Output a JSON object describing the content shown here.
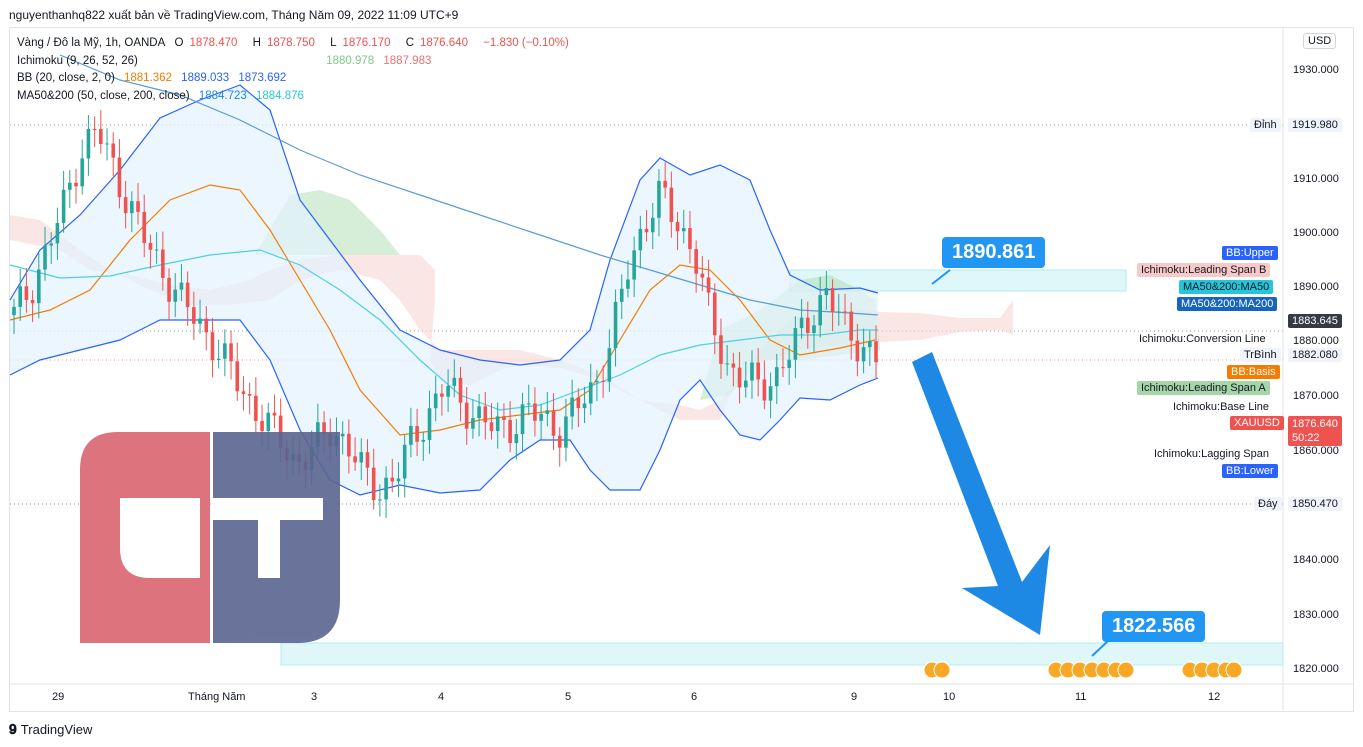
{
  "header": {
    "published": "nguyenthanhq822 xuất bản về TradingView.com, Tháng Năm 09, 2022 11:09 UTC+9"
  },
  "legend": {
    "symbol": "Vàng / Đô la Mỹ, 1h, OANDA",
    "o_label": "O",
    "o_value": "1878.470",
    "h_label": "H",
    "h_value": "1878.750",
    "l_label": "L",
    "l_value": "1876.170",
    "c_label": "C",
    "c_value": "1876.640",
    "change": "−1.830 (−0.10%)",
    "ichimoku_label": "Ichimoku (9, 26, 52, 26)",
    "ichimoku_a": "1880.978",
    "ichimoku_b": "1887.983",
    "bb_label": "BB (20, close, 2, 0)",
    "bb_basis": "1881.362",
    "bb_upper": "1889.033",
    "bb_lower": "1873.692",
    "ma_label": "MA50&200 (50, close, 200, close)",
    "ma50": "1884.723",
    "ma200": "1884.876"
  },
  "currency_button": "USD",
  "price_axis": [
    "1930.000",
    "1910.000",
    "1900.000",
    "1890.000",
    "1880.000",
    "1870.000",
    "1860.000",
    "1840.000",
    "1830.000",
    "1820.000"
  ],
  "price_labels": {
    "dinh_label": "Đỉnh",
    "dinh_value": "1919.980",
    "day_label": "Đáy",
    "day_value": "1850.470",
    "bb_upper": "BB:Upper",
    "leading_b": "Ichimoku:Leading Span B",
    "ma50": "MA50&200:MA50",
    "ma200": "MA50&200:MA200",
    "current_value": "1883.645",
    "conversion": "Ichimoku:Conversion Line",
    "trbinh_label": "TrBình",
    "trbinh_value": "1882.080",
    "bb_basis": "BB:Basis",
    "leading_a": "Ichimoku:Leading Span A",
    "base_line": "Ichimoku:Base Line",
    "xau_label": "XAUUSD",
    "xau_value": "1876.640",
    "xau_timer": "50:22",
    "lagging": "Ichimoku:Lagging Span",
    "bb_lower": "BB:Lower"
  },
  "time_axis": [
    "29",
    "Tháng Năm",
    "3",
    "4",
    "5",
    "6",
    "9",
    "10",
    "11",
    "12"
  ],
  "callouts": {
    "upper": "1890.861",
    "lower": "1822.566"
  },
  "logo_text": "CT",
  "footer": {
    "brand": "TradingView"
  },
  "colors": {
    "bull": "#26a69a",
    "bear": "#ef5350",
    "bb": "#2962ff",
    "basis": "#f57c00",
    "ma200": "#5b9bd5",
    "ma50": "#4dd0e1",
    "arrow": "#1e88e5",
    "logo_red": "#d9646f",
    "logo_blue": "#5a6591"
  },
  "chart_data": {
    "type": "candlestick",
    "symbol": "XAUUSD",
    "timeframe": "1h",
    "ylim": [
      1816,
      1940
    ],
    "x_labels": [
      "29",
      "Tháng Năm",
      "3",
      "4",
      "5",
      "6",
      "9",
      "10",
      "11",
      "12"
    ],
    "y_ticks": [
      1930,
      1910,
      1900,
      1890,
      1880,
      1870,
      1860,
      1840,
      1830,
      1820
    ],
    "close_path_estimated": [
      1885,
      1890,
      1897,
      1905,
      1915,
      1919,
      1912,
      1905,
      1898,
      1893,
      1888,
      1884,
      1880,
      1875,
      1870,
      1866,
      1862,
      1858,
      1860,
      1864,
      1862,
      1856,
      1853,
      1855,
      1862,
      1867,
      1872,
      1869,
      1866,
      1864,
      1865,
      1867,
      1866,
      1864,
      1868,
      1872,
      1880,
      1893,
      1902,
      1907,
      1902,
      1897,
      1884,
      1876,
      1873,
      1872,
      1874,
      1879,
      1885,
      1889,
      1883,
      1880,
      1876.64
    ],
    "levels": {
      "peak": 1919.98,
      "trough": 1850.47,
      "target_zone": [
        1820,
        1824.5
      ],
      "resistance_zone": [
        1889,
        1893
      ],
      "callout_upper": 1890.861,
      "callout_lower": 1822.566
    },
    "indicators": {
      "ichimoku": {
        "leading_span_a": 1880.978,
        "leading_span_b": 1887.983
      },
      "bb": {
        "basis": 1881.362,
        "upper": 1889.033,
        "lower": 1873.692
      },
      "ma50": 1884.723,
      "ma200": 1884.876
    },
    "last": {
      "open": 1878.47,
      "high": 1878.75,
      "low": 1876.17,
      "close": 1876.64
    }
  }
}
